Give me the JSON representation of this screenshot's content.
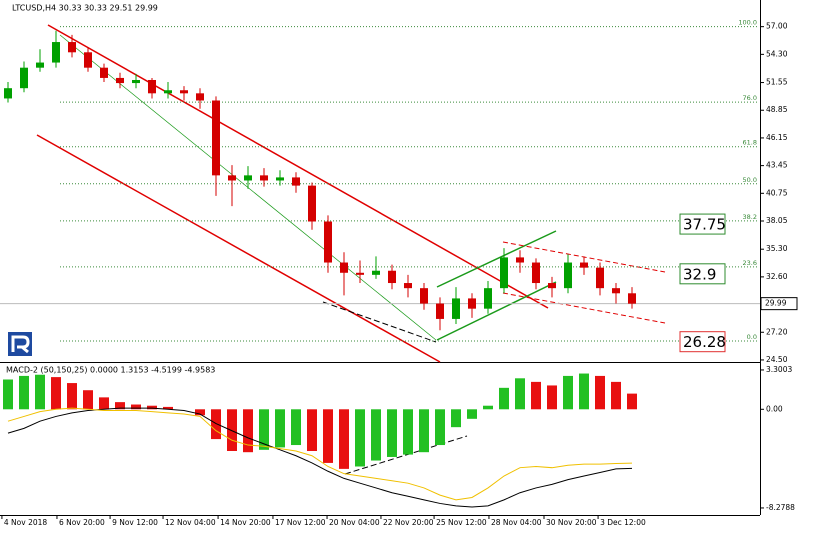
{
  "chart_data": [
    {
      "type": "candlestick",
      "title": "LTCUSD,H4  30.33 30.33 29.51 29.99",
      "up_color": "#00a000",
      "down_color": "#d40000",
      "ylim": [
        24.3,
        59.6
      ],
      "xlim": [
        -0.5,
        47
      ],
      "yticks": [
        {
          "value": 57,
          "label": "57.00"
        },
        {
          "value": 54.3,
          "label": "54.30"
        },
        {
          "value": 51.55,
          "label": "51.55"
        },
        {
          "value": 48.85,
          "label": "48.85"
        },
        {
          "value": 46.15,
          "label": "46.15"
        },
        {
          "value": 43.45,
          "label": "43.45"
        },
        {
          "value": 40.75,
          "label": "40.75"
        },
        {
          "value": 38.05,
          "label": "38.05"
        },
        {
          "value": 35.3,
          "label": "35.30"
        },
        {
          "value": 32.6,
          "label": "32.60"
        },
        {
          "value": 27.2,
          "label": "27.20"
        },
        {
          "value": 24.5,
          "label": "24.50"
        }
      ],
      "xticks": [
        {
          "value": -0.38,
          "label": "4 Nov 2018"
        },
        {
          "value": 3.06,
          "label": "6 Nov 20:00"
        },
        {
          "value": 6.38,
          "label": "9 Nov 12:00"
        },
        {
          "value": 9.69,
          "label": "12 Nov 04:00"
        },
        {
          "value": 13.13,
          "label": "14 Nov 20:00"
        },
        {
          "value": 16.56,
          "label": "17 Nov 12:00"
        },
        {
          "value": 19.94,
          "label": "20 Nov 04:00"
        },
        {
          "value": 23.31,
          "label": "22 Nov 20:00"
        },
        {
          "value": 26.63,
          "label": "25 Nov 12:00"
        },
        {
          "value": 30.06,
          "label": "28 Nov 04:00"
        },
        {
          "value": 33.5,
          "label": "30 Nov 20:00"
        },
        {
          "value": 36.88,
          "label": "3 Dec 12:00"
        }
      ],
      "last_price": 29.99,
      "fib_levels": [
        {
          "label": "100.0",
          "price": 57.0
        },
        {
          "label": "76.0",
          "price": 49.64
        },
        {
          "label": "61.8",
          "price": 45.29
        },
        {
          "label": "50.0",
          "price": 41.68
        },
        {
          "label": "38.2",
          "price": 38.06
        },
        {
          "label": "23.6",
          "price": 33.58
        },
        {
          "label": "0.0",
          "price": 26.35
        }
      ],
      "levels": [
        {
          "value": 37.75,
          "color": "#2e8b2e"
        },
        {
          "value": 32.9,
          "color": "#2e8b2e"
        },
        {
          "value": 26.28,
          "color": "#e03030"
        }
      ],
      "open": [
        50.0,
        51.0,
        53.0,
        53.5,
        55.5,
        54.5,
        53.0,
        52.0,
        51.5,
        51.8,
        50.5,
        50.8,
        50.5,
        49.8,
        42.5,
        42.0,
        42.5,
        42.0,
        42.3,
        41.5,
        38.0,
        34.0,
        33.0,
        32.8,
        33.2,
        32.0,
        31.5,
        30.0,
        28.5,
        30.5,
        29.5,
        31.5,
        34.5,
        34.0,
        32.0,
        31.5,
        34.0,
        33.5,
        31.5,
        31.0
      ],
      "high": [
        51.6,
        53.6,
        54.8,
        56.6,
        56.2,
        55.0,
        53.4,
        52.5,
        52.4,
        52.0,
        51.6,
        51.2,
        51.0,
        50.2,
        43.5,
        43.4,
        43.2,
        43.0,
        42.8,
        41.8,
        38.6,
        35.0,
        34.2,
        34.6,
        33.8,
        32.8,
        32.0,
        30.6,
        31.6,
        31.0,
        32.2,
        35.4,
        35.2,
        34.4,
        32.6,
        34.8,
        34.6,
        34.0,
        32.0,
        31.6
      ],
      "low": [
        49.6,
        50.6,
        52.6,
        53.0,
        54.0,
        52.6,
        51.6,
        51.0,
        51.0,
        50.0,
        50.0,
        49.8,
        49.0,
        40.5,
        39.5,
        41.2,
        41.4,
        41.5,
        40.8,
        37.2,
        33.0,
        30.8,
        32.0,
        32.4,
        31.4,
        30.6,
        29.4,
        27.4,
        28.0,
        28.6,
        29.0,
        31.0,
        33.0,
        31.4,
        30.6,
        31.0,
        32.8,
        30.8,
        30.0,
        29.51
      ],
      "close": [
        51.0,
        53.0,
        53.5,
        55.5,
        54.5,
        53.0,
        52.0,
        51.5,
        51.8,
        50.5,
        50.8,
        50.5,
        49.8,
        42.5,
        42.0,
        42.5,
        42.0,
        42.3,
        41.5,
        38.0,
        34.0,
        33.0,
        32.8,
        33.2,
        32.0,
        31.5,
        30.0,
        28.5,
        30.5,
        29.5,
        31.5,
        34.5,
        34.0,
        32.0,
        31.5,
        34.0,
        33.5,
        31.5,
        31.0,
        29.99
      ]
    },
    {
      "type": "macd",
      "title": "MACD-2 (50,150,25) 0.0000 1.3153 -4.5199 -4.9583",
      "ylim": [
        -8.87,
        3.8
      ],
      "xlim": [
        -0.5,
        47
      ],
      "yticks": [
        {
          "value": 3.3003,
          "label": "3.3003"
        },
        {
          "value": 0,
          "label": "0.00"
        },
        {
          "value": -8.2788,
          "label": "-8.2788"
        }
      ],
      "up_color": "#22c022",
      "down_color": "#e81010",
      "histogram": [
        2.5,
        2.8,
        2.9,
        2.7,
        2.2,
        1.6,
        1.0,
        0.6,
        0.4,
        0.3,
        0.2,
        0.0,
        -0.5,
        -2.5,
        -3.5,
        -3.6,
        -3.4,
        -3.2,
        -3.0,
        -3.5,
        -4.5,
        -5.0,
        -4.8,
        -4.3,
        -4.0,
        -3.8,
        -3.6,
        -3.0,
        -1.5,
        -0.8,
        0.3,
        1.8,
        2.6,
        2.3,
        2.0,
        2.8,
        3.0,
        2.8,
        2.3,
        1.3153
      ],
      "series": [
        {
          "color": "#000000",
          "values": [
            -2.0,
            -1.6,
            -1.0,
            -0.6,
            -0.3,
            -0.1,
            0.0,
            0.1,
            0.1,
            0.1,
            0.0,
            -0.1,
            -0.4,
            -1.2,
            -1.8,
            -2.4,
            -2.9,
            -3.4,
            -3.9,
            -4.5,
            -5.2,
            -5.8,
            -6.2,
            -6.6,
            -7.0,
            -7.3,
            -7.6,
            -7.9,
            -8.1,
            -8.2,
            -8.1,
            -7.6,
            -7.0,
            -6.6,
            -6.3,
            -5.9,
            -5.6,
            -5.3,
            -5.0,
            -4.9583
          ]
        },
        {
          "color": "#f0c000",
          "values": [
            -1.0,
            -0.6,
            -0.2,
            0.0,
            0.1,
            0.0,
            -0.1,
            -0.1,
            -0.1,
            -0.2,
            -0.3,
            -0.4,
            -0.6,
            -1.8,
            -2.6,
            -3.0,
            -3.1,
            -3.3,
            -3.5,
            -3.9,
            -4.8,
            -5.4,
            -5.6,
            -5.8,
            -6.0,
            -6.2,
            -6.6,
            -7.2,
            -7.6,
            -7.4,
            -6.6,
            -5.6,
            -4.9,
            -4.8,
            -4.9,
            -4.7,
            -4.6,
            -4.6,
            -4.55,
            -4.5199
          ]
        }
      ]
    }
  ]
}
